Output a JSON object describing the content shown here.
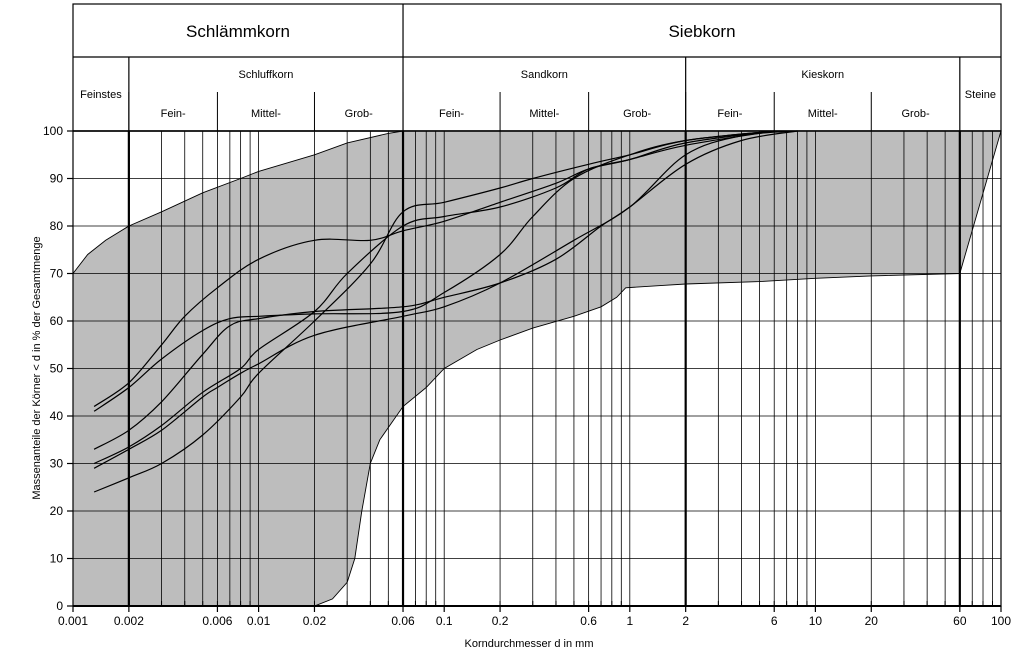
{
  "chart_data": {
    "type": "line",
    "x_scale": "log",
    "xlim": [
      0.001,
      100
    ],
    "ylim": [
      0,
      100
    ],
    "grid": true,
    "xlabel": "Korndurchmesser d in mm",
    "ylabel": "Massenanteile der Körner < d in % der Gesamtmenge",
    "x_ticks": [
      {
        "value": 0.001,
        "label": "0.001"
      },
      {
        "value": 0.002,
        "label": "0.002"
      },
      {
        "value": 0.006,
        "label": "0.006"
      },
      {
        "value": 0.01,
        "label": "0.01"
      },
      {
        "value": 0.02,
        "label": "0.02"
      },
      {
        "value": 0.06,
        "label": "0.06"
      },
      {
        "value": 0.1,
        "label": "0.1"
      },
      {
        "value": 0.2,
        "label": "0.2"
      },
      {
        "value": 0.6,
        "label": "0.6"
      },
      {
        "value": 1,
        "label": "1"
      },
      {
        "value": 2,
        "label": "2"
      },
      {
        "value": 6,
        "label": "6"
      },
      {
        "value": 10,
        "label": "10"
      },
      {
        "value": 20,
        "label": "20"
      },
      {
        "value": 60,
        "label": "60"
      },
      {
        "value": 100,
        "label": "100"
      }
    ],
    "y_ticks": [
      {
        "value": 0,
        "label": "0"
      },
      {
        "value": 10,
        "label": "10"
      },
      {
        "value": 20,
        "label": "20"
      },
      {
        "value": 30,
        "label": "30"
      },
      {
        "value": 40,
        "label": "40"
      },
      {
        "value": 50,
        "label": "50"
      },
      {
        "value": 60,
        "label": "60"
      },
      {
        "value": 70,
        "label": "70"
      },
      {
        "value": 80,
        "label": "80"
      },
      {
        "value": 90,
        "label": "90"
      },
      {
        "value": 100,
        "label": "100"
      }
    ],
    "header": {
      "top": [
        {
          "label": "Schlämmkorn",
          "from": 0.001,
          "to": 0.06
        },
        {
          "label": "Siebkorn",
          "from": 0.06,
          "to": 100
        }
      ],
      "groups": [
        {
          "label": "Feinstes",
          "from": 0.001,
          "to": 0.002
        },
        {
          "label": "Schluffkorn",
          "from": 0.002,
          "to": 0.06
        },
        {
          "label": "Sandkorn",
          "from": 0.06,
          "to": 2
        },
        {
          "label": "Kieskorn",
          "from": 2,
          "to": 60
        },
        {
          "label": "Steine",
          "from": 60,
          "to": 100
        }
      ],
      "subs": [
        {
          "label": "Fein-",
          "from": 0.002,
          "to": 0.006
        },
        {
          "label": "Mittel-",
          "from": 0.006,
          "to": 0.02
        },
        {
          "label": "Grob-",
          "from": 0.02,
          "to": 0.06
        },
        {
          "label": "Fein-",
          "from": 0.06,
          "to": 0.2
        },
        {
          "label": "Mittel-",
          "from": 0.2,
          "to": 0.6
        },
        {
          "label": "Grob-",
          "from": 0.6,
          "to": 2
        },
        {
          "label": "Fein-",
          "from": 2,
          "to": 6
        },
        {
          "label": "Mittel-",
          "from": 6,
          "to": 20
        },
        {
          "label": "Grob-",
          "from": 20,
          "to": 60
        }
      ]
    },
    "band": {
      "upper": [
        [
          0.001,
          70
        ],
        [
          0.0012,
          74
        ],
        [
          0.0015,
          77
        ],
        [
          0.002,
          80
        ],
        [
          0.003,
          83
        ],
        [
          0.005,
          87
        ],
        [
          0.008,
          90
        ],
        [
          0.01,
          91.5
        ],
        [
          0.02,
          95
        ],
        [
          0.03,
          97.5
        ],
        [
          0.05,
          99.5
        ],
        [
          0.06,
          100
        ],
        [
          100,
          100
        ]
      ],
      "lower": [
        [
          0.001,
          0
        ],
        [
          0.02,
          0
        ],
        [
          0.025,
          1.5
        ],
        [
          0.03,
          5
        ],
        [
          0.033,
          10
        ],
        [
          0.036,
          20
        ],
        [
          0.04,
          30
        ],
        [
          0.045,
          35
        ],
        [
          0.06,
          42
        ],
        [
          0.08,
          46
        ],
        [
          0.1,
          50
        ],
        [
          0.15,
          54
        ],
        [
          0.2,
          56
        ],
        [
          0.3,
          58.5
        ],
        [
          0.5,
          61
        ],
        [
          0.7,
          63
        ],
        [
          0.85,
          65
        ],
        [
          0.95,
          67
        ],
        [
          1.5,
          67.5
        ],
        [
          2,
          67.8
        ],
        [
          5,
          68.3
        ],
        [
          10,
          69
        ],
        [
          20,
          69.5
        ],
        [
          60,
          70
        ]
      ]
    },
    "series": [
      {
        "values": [
          [
            0.0013,
            42
          ],
          [
            0.002,
            47
          ],
          [
            0.003,
            55
          ],
          [
            0.004,
            61
          ],
          [
            0.006,
            67
          ],
          [
            0.01,
            73
          ],
          [
            0.02,
            77
          ],
          [
            0.04,
            77
          ],
          [
            0.06,
            79
          ],
          [
            0.1,
            81
          ],
          [
            0.2,
            85
          ],
          [
            0.4,
            89
          ],
          [
            0.6,
            92
          ],
          [
            1,
            94
          ],
          [
            2,
            97.5
          ],
          [
            6,
            100
          ]
        ]
      },
      {
        "values": [
          [
            0.0013,
            41
          ],
          [
            0.002,
            46
          ],
          [
            0.003,
            52
          ],
          [
            0.005,
            58
          ],
          [
            0.007,
            60.5
          ],
          [
            0.01,
            61
          ],
          [
            0.02,
            61.5
          ],
          [
            0.06,
            62
          ],
          [
            0.1,
            66
          ],
          [
            0.2,
            74
          ],
          [
            0.3,
            82
          ],
          [
            0.5,
            90
          ],
          [
            1,
            95
          ],
          [
            2,
            98
          ],
          [
            6,
            100
          ]
        ]
      },
      {
        "values": [
          [
            0.0013,
            33
          ],
          [
            0.002,
            37
          ],
          [
            0.003,
            43
          ],
          [
            0.005,
            53
          ],
          [
            0.007,
            59
          ],
          [
            0.01,
            60.5
          ],
          [
            0.02,
            62
          ],
          [
            0.06,
            63
          ],
          [
            0.1,
            65
          ],
          [
            0.2,
            68
          ],
          [
            0.4,
            73
          ],
          [
            0.7,
            80
          ],
          [
            1,
            84
          ],
          [
            2,
            93
          ],
          [
            4,
            98
          ],
          [
            8,
            100
          ]
        ]
      },
      {
        "values": [
          [
            0.0013,
            30
          ],
          [
            0.002,
            33.5
          ],
          [
            0.003,
            38
          ],
          [
            0.005,
            45
          ],
          [
            0.008,
            50
          ],
          [
            0.01,
            54
          ],
          [
            0.02,
            62
          ],
          [
            0.03,
            70
          ],
          [
            0.06,
            80
          ],
          [
            0.1,
            82
          ],
          [
            0.2,
            84
          ],
          [
            0.4,
            88
          ],
          [
            0.6,
            92
          ],
          [
            1,
            94
          ],
          [
            2,
            97
          ],
          [
            6,
            100
          ]
        ]
      },
      {
        "values": [
          [
            0.0013,
            29
          ],
          [
            0.002,
            33
          ],
          [
            0.003,
            37
          ],
          [
            0.005,
            44
          ],
          [
            0.006,
            46
          ],
          [
            0.008,
            49
          ],
          [
            0.01,
            51
          ],
          [
            0.02,
            57
          ],
          [
            0.06,
            61
          ],
          [
            0.1,
            63
          ],
          [
            0.2,
            68
          ],
          [
            0.5,
            77
          ],
          [
            1,
            84
          ],
          [
            2,
            95
          ],
          [
            4,
            99
          ],
          [
            8,
            100
          ]
        ]
      },
      {
        "values": [
          [
            0.0013,
            24
          ],
          [
            0.002,
            27
          ],
          [
            0.003,
            30
          ],
          [
            0.005,
            36
          ],
          [
            0.008,
            44
          ],
          [
            0.01,
            49
          ],
          [
            0.02,
            60
          ],
          [
            0.04,
            72
          ],
          [
            0.06,
            83
          ],
          [
            0.1,
            85
          ],
          [
            0.2,
            88
          ],
          [
            0.3,
            90
          ],
          [
            0.6,
            93
          ],
          [
            1,
            95
          ],
          [
            2,
            98
          ],
          [
            6,
            100
          ]
        ]
      }
    ]
  }
}
